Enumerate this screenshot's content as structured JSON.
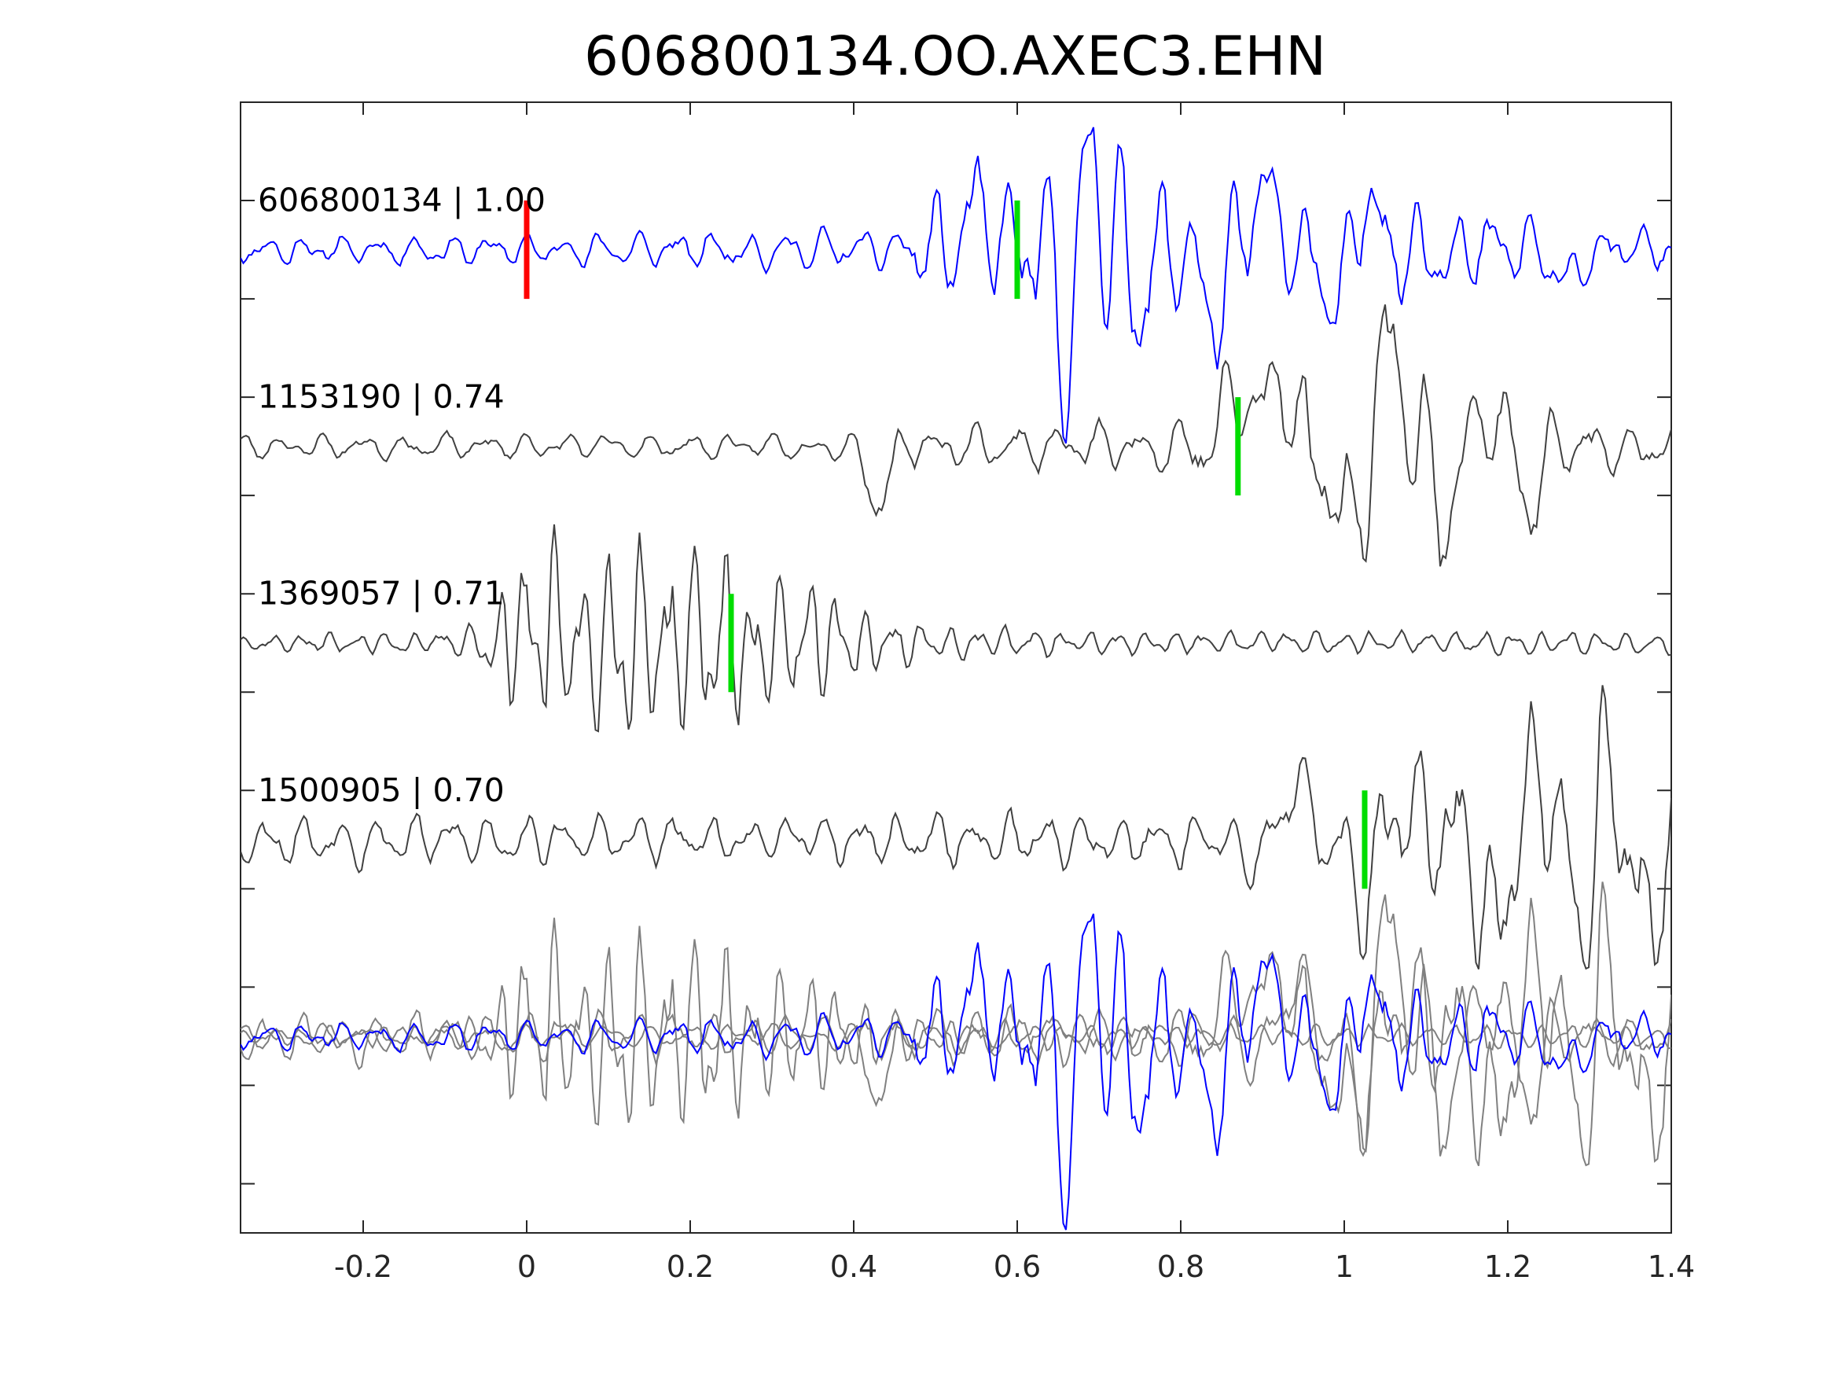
{
  "chart_data": {
    "type": "line",
    "title": "606800134.OO.AXEC3.EHN",
    "xlabel": "",
    "ylabel": "",
    "xlim": [
      -0.35,
      1.4
    ],
    "ylim": [
      0,
      5.75
    ],
    "x_ticks": [
      -0.2,
      0,
      0.2,
      0.4,
      0.6,
      0.8,
      1,
      1.2,
      1.4
    ],
    "x_tick_labels": [
      "-0.2",
      "0",
      "0.2",
      "0.4",
      "0.6",
      "0.8",
      "1",
      "1.2",
      "1.4"
    ],
    "y_ticks": [
      0.25,
      0.75,
      1.25,
      1.75,
      2.25,
      2.75,
      3.25,
      3.75,
      4.25,
      4.75,
      5.25
    ],
    "grid": false,
    "legend": "none",
    "colors": {
      "master": "#0000ff",
      "trace": "#404040",
      "stack": "#808080",
      "reference_pick": "#ff0000",
      "pick": "#00dd00",
      "axes": "#262626"
    },
    "series": [
      {
        "label": "606800134 | 1.00",
        "id": "606800134",
        "correlation": 1.0,
        "baseline": 5.0,
        "color": "master",
        "pick_time": 0.6,
        "ref_pick_time": 0.0,
        "envelope": [
          [
            -0.35,
            0.07
          ],
          [
            0.45,
            0.1
          ],
          [
            0.5,
            0.25
          ],
          [
            0.6,
            0.35
          ],
          [
            0.65,
            0.45
          ],
          [
            0.72,
            0.48
          ],
          [
            0.8,
            0.3
          ],
          [
            1.0,
            0.28
          ],
          [
            1.1,
            0.25
          ],
          [
            1.25,
            0.15
          ],
          [
            1.4,
            0.1
          ]
        ],
        "freq": 22,
        "seed": 11,
        "events": [
          [
            0.55,
            0.2
          ],
          [
            0.66,
            -0.5
          ],
          [
            0.69,
            0.48
          ],
          [
            0.75,
            -0.2
          ],
          [
            0.84,
            -0.35
          ],
          [
            0.9,
            0.3
          ],
          [
            0.99,
            -0.32
          ],
          [
            1.03,
            0.28
          ],
          [
            1.27,
            -0.2
          ]
        ]
      },
      {
        "label": "1153190 | 0.74",
        "id": "1153190",
        "correlation": 0.74,
        "baseline": 4.0,
        "color": "trace",
        "pick_time": 0.87,
        "envelope": [
          [
            -0.35,
            0.06
          ],
          [
            0.38,
            0.06
          ],
          [
            0.42,
            0.12
          ],
          [
            0.5,
            0.1
          ],
          [
            0.78,
            0.12
          ],
          [
            0.85,
            0.25
          ],
          [
            0.95,
            0.3
          ],
          [
            1.05,
            0.45
          ],
          [
            1.15,
            0.3
          ],
          [
            1.3,
            0.15
          ],
          [
            1.4,
            0.1
          ]
        ],
        "freq": 20,
        "seed": 23,
        "events": [
          [
            0.43,
            -0.28
          ],
          [
            0.87,
            0.32
          ],
          [
            0.92,
            0.4
          ],
          [
            1.0,
            -0.45
          ],
          [
            1.06,
            0.55
          ],
          [
            1.12,
            -0.35
          ],
          [
            1.17,
            0.2
          ],
          [
            1.23,
            -0.3
          ]
        ]
      },
      {
        "label": "1369057 | 0.71",
        "id": "1369057",
        "correlation": 0.71,
        "baseline": 3.0,
        "color": "trace",
        "pick_time": 0.25,
        "envelope": [
          [
            -0.35,
            0.04
          ],
          [
            -0.08,
            0.06
          ],
          [
            -0.04,
            0.25
          ],
          [
            0.0,
            0.45
          ],
          [
            0.1,
            0.5
          ],
          [
            0.2,
            0.5
          ],
          [
            0.3,
            0.35
          ],
          [
            0.4,
            0.18
          ],
          [
            0.5,
            0.08
          ],
          [
            0.7,
            0.06
          ],
          [
            1.4,
            0.05
          ]
        ],
        "freq": 29,
        "seed": 37,
        "events": []
      },
      {
        "label": "1500905 | 0.70",
        "id": "1500905",
        "correlation": 0.7,
        "baseline": 2.0,
        "color": "trace",
        "pick_time": 1.025,
        "envelope": [
          [
            -0.35,
            0.12
          ],
          [
            0.3,
            0.12
          ],
          [
            0.9,
            0.14
          ],
          [
            0.95,
            0.2
          ],
          [
            1.05,
            0.35
          ],
          [
            1.2,
            0.45
          ],
          [
            1.3,
            0.5
          ],
          [
            1.4,
            0.4
          ]
        ],
        "freq": 22,
        "seed": 53,
        "events": [
          [
            0.88,
            -0.12
          ],
          [
            0.94,
            0.3
          ],
          [
            1.02,
            -0.35
          ],
          [
            1.07,
            0.15
          ],
          [
            1.18,
            -0.45
          ],
          [
            1.24,
            0.3
          ],
          [
            1.29,
            -0.4
          ],
          [
            1.32,
            0.4
          ],
          [
            1.37,
            -0.45
          ]
        ]
      }
    ],
    "stack_baseline": 1.0,
    "pick_half_height": 0.25
  }
}
